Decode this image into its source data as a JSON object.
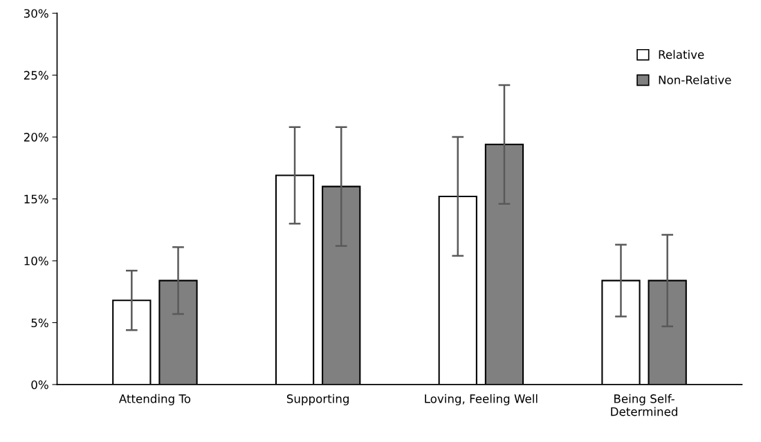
{
  "chart_data": {
    "type": "bar",
    "categories": [
      "Attending To",
      "Supporting",
      "Loving, Feeling Well",
      "Being Self-\nDetermined"
    ],
    "series": [
      {
        "name": "Relative",
        "color": "#ffffff",
        "values": [
          6.8,
          16.9,
          15.2,
          8.4
        ],
        "errors": [
          2.4,
          3.9,
          4.8,
          2.9
        ]
      },
      {
        "name": "Non-Relative",
        "color": "#808080",
        "values": [
          8.4,
          16.0,
          19.4,
          8.4
        ],
        "errors": [
          2.7,
          4.8,
          4.8,
          3.7
        ]
      }
    ],
    "ylim": [
      0,
      30
    ],
    "yticks": [
      {
        "value": 0,
        "label": "0%"
      },
      {
        "value": 5,
        "label": "5%"
      },
      {
        "value": 10,
        "label": "10%"
      },
      {
        "value": 15,
        "label": "15%"
      },
      {
        "value": 20,
        "label": "20%"
      },
      {
        "value": 25,
        "label": "25%"
      },
      {
        "value": 30,
        "label": "30%"
      }
    ],
    "grid": false,
    "legend": "top right"
  }
}
